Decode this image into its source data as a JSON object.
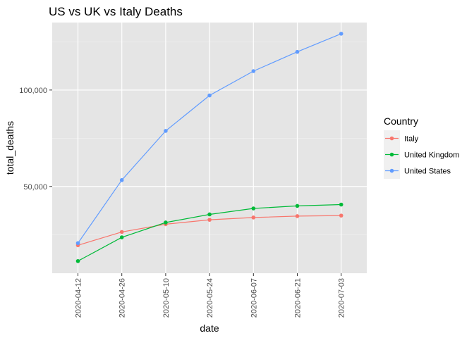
{
  "colors": {
    "panel_bg": "#e5e5e5",
    "grid_major": "#ffffff",
    "grid_minor": "#f2f2f2",
    "tick": "#333333",
    "legend_key_bg": "#f0f0f0"
  },
  "chart_data": {
    "type": "line",
    "title": "US vs UK vs Italy Deaths",
    "xlabel": "date",
    "ylabel": "total_deaths",
    "x": [
      "2020-04-12",
      "2020-04-26",
      "2020-05-10",
      "2020-05-24",
      "2020-06-07",
      "2020-06-21",
      "2020-07-03"
    ],
    "ylim": [
      5000,
      135000
    ],
    "y_ticks": [
      50000,
      100000
    ],
    "y_tick_labels": [
      "50,000",
      "100,000"
    ],
    "grid": true,
    "legend": {
      "title": "Country",
      "position": "right",
      "entries": [
        "Italy",
        "United Kingdom",
        "United States"
      ]
    },
    "series": [
      {
        "name": "Italy",
        "color": "#f8766d",
        "values": [
          19500,
          26400,
          30400,
          32700,
          33900,
          34600,
          34900
        ]
      },
      {
        "name": "United Kingdom",
        "color": "#00ba38",
        "values": [
          11300,
          23600,
          31300,
          35500,
          38600,
          39900,
          40600
        ]
      },
      {
        "name": "United States",
        "color": "#619cff",
        "values": [
          20600,
          53300,
          78800,
          97200,
          109800,
          119800,
          129200
        ]
      }
    ]
  }
}
